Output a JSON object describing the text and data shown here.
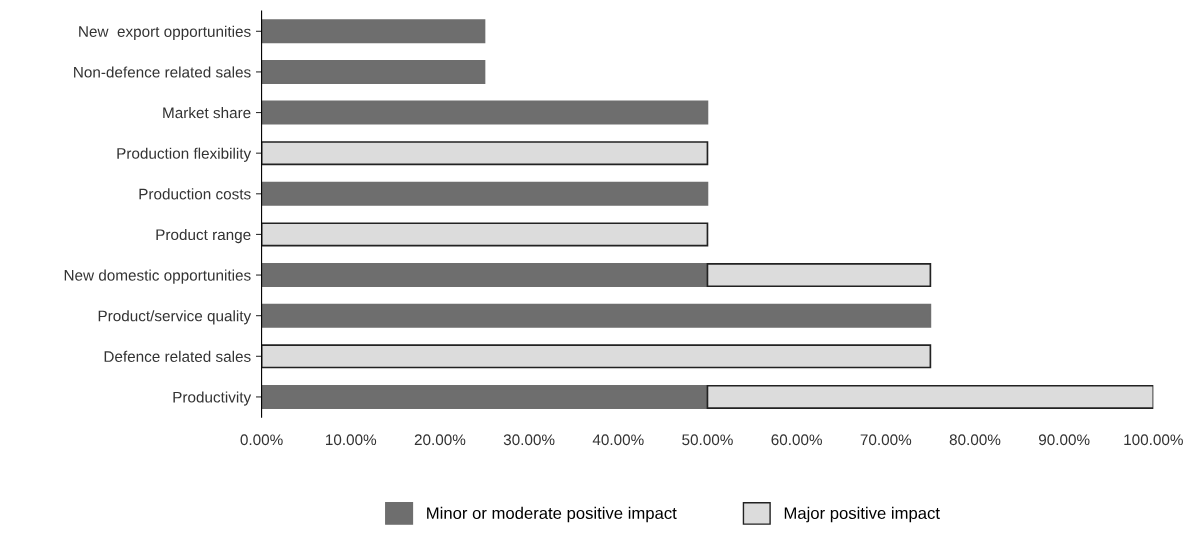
{
  "chart_data": {
    "type": "bar",
    "orientation": "horizontal",
    "stacked": true,
    "categories": [
      "New  export opportunities",
      "Non-defence related sales",
      "Market share",
      "Production flexibility",
      "Production costs",
      "Product range",
      "New domestic opportunities",
      "Product/service quality",
      "Defence related sales",
      "Productivity"
    ],
    "series": [
      {
        "name": "Minor or moderate positive impact",
        "color": "#6e6e6e",
        "values": [
          25,
          25,
          50,
          0,
          50,
          0,
          50,
          75,
          0,
          50
        ]
      },
      {
        "name": "Major positive impact",
        "color": "#dcdcdc",
        "values": [
          0,
          0,
          0,
          50,
          0,
          50,
          25,
          0,
          75,
          50
        ]
      }
    ],
    "xlim": [
      0,
      100
    ],
    "xticks": [
      {
        "value": 0,
        "label": "0.00%"
      },
      {
        "value": 10,
        "label": "10.00%"
      },
      {
        "value": 20,
        "label": "20.00%"
      },
      {
        "value": 30,
        "label": "30.00%"
      },
      {
        "value": 40,
        "label": "40.00%"
      },
      {
        "value": 50,
        "label": "50.00%"
      },
      {
        "value": 60,
        "label": "60.00%"
      },
      {
        "value": 70,
        "label": "70.00%"
      },
      {
        "value": 80,
        "label": "80.00%"
      },
      {
        "value": 90,
        "label": "90.00%"
      },
      {
        "value": 100,
        "label": "100.00%"
      }
    ],
    "grid": false,
    "legend": "bottom"
  }
}
